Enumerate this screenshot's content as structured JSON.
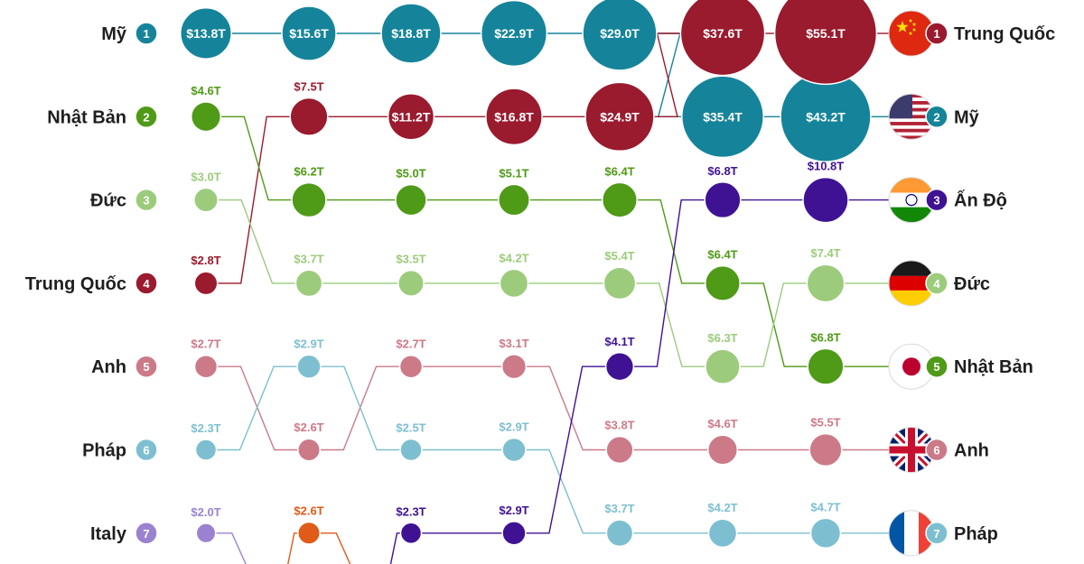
{
  "chart_data": {
    "type": "bump-bubble",
    "columns": 7,
    "colors": {
      "usa": "#15849a",
      "china": "#9a1a2e",
      "japan": "#4f9a16",
      "germany": "#9ccb7c",
      "uk": "#cc7a88",
      "france": "#7dbfd0",
      "italy": "#9b82d0",
      "india": "#3f1294",
      "unknown": "#e05a18"
    },
    "left_labels": [
      {
        "rank": "1",
        "name": "Mỹ",
        "key": "usa"
      },
      {
        "rank": "2",
        "name": "Nhật Bản",
        "key": "japan"
      },
      {
        "rank": "3",
        "name": "Đức",
        "key": "germany"
      },
      {
        "rank": "4",
        "name": "Trung Quốc",
        "key": "china"
      },
      {
        "rank": "5",
        "name": "Anh",
        "key": "uk"
      },
      {
        "rank": "6",
        "name": "Pháp",
        "key": "france"
      },
      {
        "rank": "7",
        "name": "Italy",
        "key": "italy"
      }
    ],
    "right_labels": [
      {
        "rank": "1",
        "name": "Trung Quốc",
        "key": "china",
        "flag": "china-flag"
      },
      {
        "rank": "2",
        "name": "Mỹ",
        "key": "usa",
        "flag": "usa-flag"
      },
      {
        "rank": "3",
        "name": "Ấn Độ",
        "key": "india",
        "flag": "india-flag"
      },
      {
        "rank": "4",
        "name": "Đức",
        "key": "germany",
        "flag": "germany-flag"
      },
      {
        "rank": "5",
        "name": "Nhật Bản",
        "key": "japan",
        "flag": "japan-flag"
      },
      {
        "rank": "6",
        "name": "Anh",
        "key": "uk",
        "flag": "uk-flag"
      },
      {
        "rank": "7",
        "name": "Pháp",
        "key": "france",
        "flag": "france-flag"
      }
    ],
    "series": [
      {
        "key": "usa",
        "values": [
          13.8,
          15.6,
          18.8,
          22.9,
          29.0,
          35.4,
          43.2
        ],
        "ranks": [
          1,
          1,
          1,
          1,
          1,
          2,
          2
        ],
        "labels": [
          "$13.8T",
          "$15.6T",
          "$18.8T",
          "$22.9T",
          "$29.0T",
          "$35.4T",
          "$43.2T"
        ],
        "label_inside": [
          true,
          true,
          true,
          true,
          true,
          true,
          true
        ]
      },
      {
        "key": "china",
        "values": [
          2.8,
          7.5,
          11.2,
          16.8,
          24.9,
          37.6,
          55.1
        ],
        "ranks": [
          4,
          2,
          2,
          2,
          2,
          1,
          1
        ],
        "labels": [
          "$2.8T",
          "$7.5T",
          "$11.2T",
          "$16.8T",
          "$24.9T",
          "$37.6T",
          "$55.1T"
        ],
        "label_inside": [
          false,
          false,
          true,
          true,
          true,
          true,
          true
        ]
      },
      {
        "key": "japan",
        "values": [
          4.6,
          6.2,
          5.0,
          5.1,
          6.4,
          6.4,
          6.8
        ],
        "ranks": [
          2,
          3,
          3,
          3,
          3,
          4,
          5
        ],
        "labels": [
          "$4.6T",
          "$6.2T",
          "$5.0T",
          "$5.1T",
          "$6.4T",
          "$6.4T",
          "$6.8T"
        ],
        "label_inside": [
          false,
          false,
          false,
          false,
          false,
          false,
          false
        ]
      },
      {
        "key": "germany",
        "values": [
          3.0,
          3.7,
          3.5,
          4.2,
          5.4,
          6.3,
          7.4
        ],
        "ranks": [
          3,
          4,
          4,
          4,
          4,
          5,
          4
        ],
        "labels": [
          "$3.0T",
          "$3.7T",
          "$3.5T",
          "$4.2T",
          "$5.4T",
          "$6.3T",
          "$7.4T"
        ],
        "label_inside": [
          false,
          false,
          false,
          false,
          false,
          false,
          false
        ]
      },
      {
        "key": "uk",
        "values": [
          2.7,
          2.6,
          2.7,
          3.1,
          3.8,
          4.6,
          5.5
        ],
        "ranks": [
          5,
          6,
          5,
          5,
          6,
          6,
          6
        ],
        "labels": [
          "$2.7T",
          "$2.6T",
          "$2.7T",
          "$3.1T",
          "$3.8T",
          "$4.6T",
          "$5.5T"
        ],
        "label_inside": [
          false,
          false,
          false,
          false,
          false,
          false,
          false
        ]
      },
      {
        "key": "france",
        "values": [
          2.3,
          2.9,
          2.5,
          2.9,
          3.7,
          4.2,
          4.7
        ],
        "ranks": [
          6,
          5,
          6,
          6,
          7,
          7,
          7
        ],
        "labels": [
          "$2.3T",
          "$2.9T",
          "$2.5T",
          "$2.9T",
          "$3.7T",
          "$4.2T",
          "$4.7T"
        ],
        "label_inside": [
          false,
          false,
          false,
          false,
          false,
          false,
          false
        ]
      },
      {
        "key": "italy",
        "values": [
          2.0
        ],
        "ranks": [
          7
        ],
        "labels": [
          "$2.0T"
        ],
        "label_inside": [
          false
        ],
        "exits_below_from": 0
      },
      {
        "key": "unknown",
        "values": [
          2.6
        ],
        "ranks": [
          7
        ],
        "start_col": 1,
        "labels": [
          "$2.6T"
        ],
        "label_inside": [
          false
        ],
        "exits_below_from": 0,
        "enters_from_below": true
      },
      {
        "key": "india",
        "values": [
          2.3,
          2.9,
          4.1,
          6.8,
          10.8
        ],
        "ranks": [
          7,
          7,
          5,
          3,
          3
        ],
        "start_col": 2,
        "labels": [
          "$2.3T",
          "$2.9T",
          "$4.1T",
          "$6.8T",
          "$10.8T"
        ],
        "label_inside": [
          false,
          false,
          false,
          false,
          false
        ],
        "enters_from_below": true
      }
    ]
  }
}
